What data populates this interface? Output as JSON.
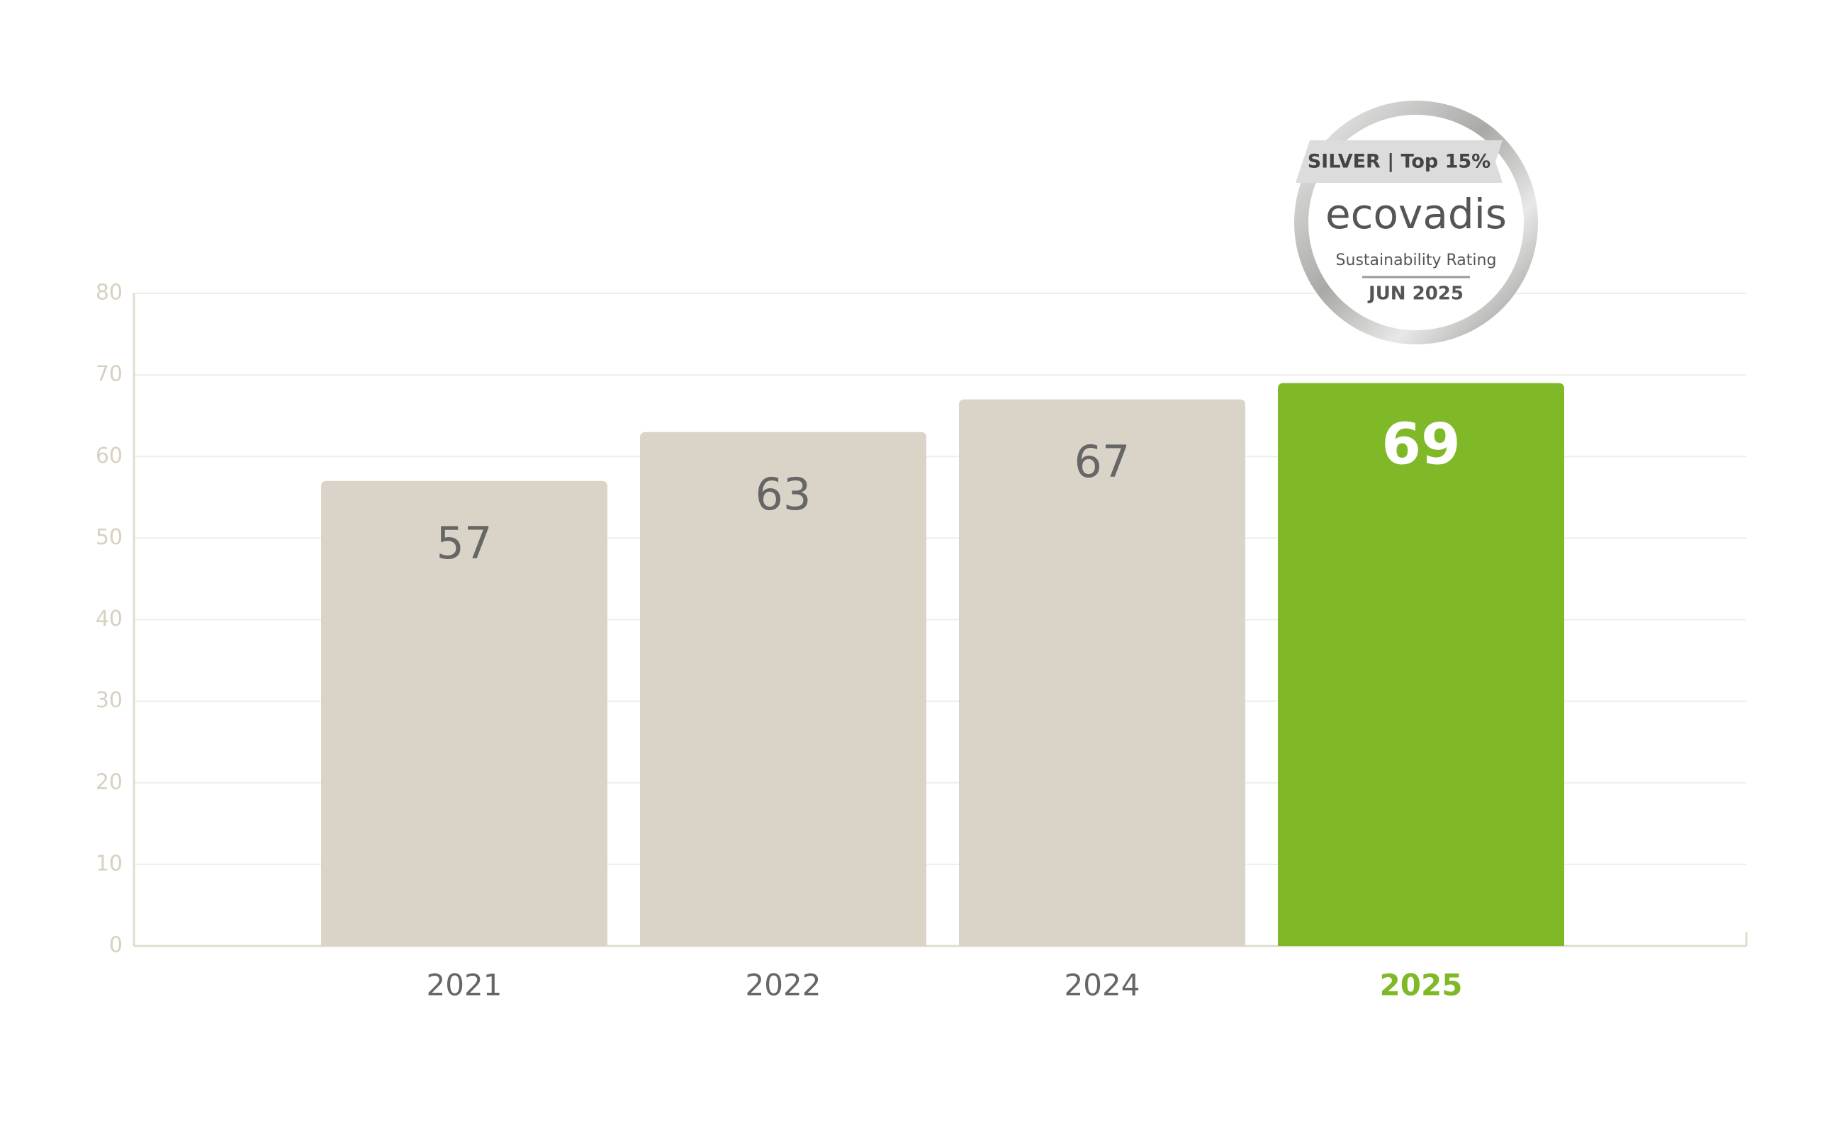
{
  "chart_data": {
    "type": "bar",
    "categories": [
      "2021",
      "2022",
      "2024",
      "2025"
    ],
    "values": [
      57,
      63,
      67,
      69
    ],
    "colors": [
      "#dad4c8",
      "#dad4c8",
      "#dad4c8",
      "#80b928"
    ],
    "label_colors": [
      "#666666",
      "#666666",
      "#666666",
      "#80b928"
    ],
    "value_label_colors": [
      "#666666",
      "#666666",
      "#666666",
      "#ffffff"
    ],
    "ylim": [
      0,
      80
    ],
    "yticks": [
      0,
      10,
      20,
      30,
      40,
      50,
      60,
      70,
      80
    ],
    "grid": true
  },
  "badge": {
    "rank": "SILVER | Top 15%",
    "brand": "ecovadis",
    "subtitle": "Sustainability Rating",
    "date": "JUN 2025"
  }
}
